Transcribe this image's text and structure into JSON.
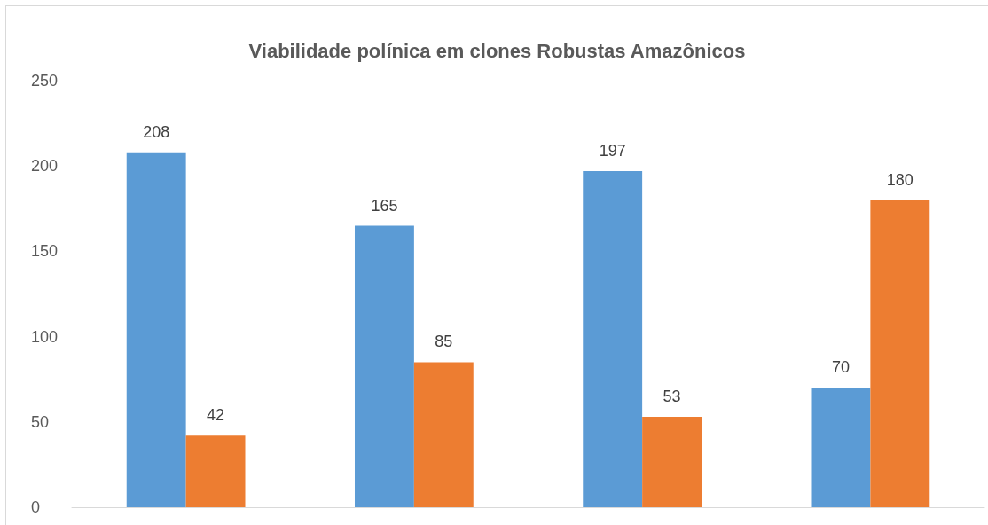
{
  "chart_data": {
    "type": "bar",
    "title": "Viabilidade polínica em clones Robustas Amazônicos",
    "categories": [
      null,
      null,
      null,
      null
    ],
    "series": [
      {
        "color": "#5b9bd5",
        "values": [
          208,
          165,
          197,
          70
        ]
      },
      {
        "color": "#ed7d31",
        "values": [
          42,
          85,
          53,
          180
        ]
      }
    ],
    "ylim": [
      0,
      250
    ],
    "yticks": [
      0,
      50,
      100,
      150,
      200,
      250
    ],
    "grid": false,
    "data_labels": true
  }
}
